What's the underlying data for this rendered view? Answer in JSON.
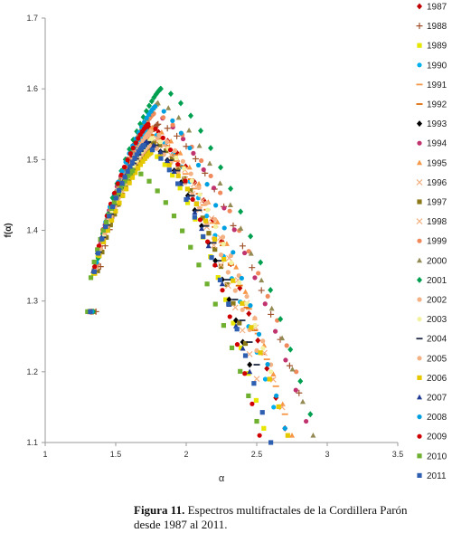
{
  "chart_data": {
    "type": "scatter",
    "title": "",
    "xlabel": "α",
    "ylabel": "f(α)",
    "xlim": [
      1,
      3.5
    ],
    "ylim": [
      1.1,
      1.7
    ],
    "xticks": [
      1,
      1.5,
      2,
      2.5,
      3,
      3.5
    ],
    "yticks": [
      1.1,
      1.2,
      1.3,
      1.4,
      1.5,
      1.6,
      1.7
    ],
    "xtick_labels": [
      "1",
      "1.5",
      "2",
      "2.5",
      "3",
      "3.5"
    ],
    "ytick_labels": [
      "1.1",
      "1.2",
      "1.3",
      "1.4",
      "1.5",
      "1.6",
      "1.7"
    ],
    "grid": false,
    "legend_position": "right",
    "series": [
      {
        "name": "1987",
        "color": "#c00000",
        "marker": "diamond",
        "a0": 1.33,
        "amax": 1.74,
        "fmax": 1.545,
        "a1": 2.7,
        "f1": 1.12
      },
      {
        "name": "1988",
        "color": "#a0522d",
        "marker": "plus",
        "a0": 1.36,
        "amax": 1.8,
        "fmax": 1.55,
        "a1": 2.8,
        "f1": 1.17
      },
      {
        "name": "1989",
        "color": "#e6e600",
        "marker": "square",
        "a0": 1.31,
        "amax": 1.74,
        "fmax": 1.51,
        "a1": 2.55,
        "f1": 1.12
      },
      {
        "name": "1990",
        "color": "#00b0f0",
        "marker": "dot",
        "a0": 1.32,
        "amax": 1.73,
        "fmax": 1.54,
        "a1": 2.62,
        "f1": 1.15
      },
      {
        "name": "1991",
        "color": "#f79646",
        "marker": "dash",
        "a0": 1.33,
        "amax": 1.74,
        "fmax": 1.53,
        "a1": 2.7,
        "f1": 1.14
      },
      {
        "name": "1992",
        "color": "#e36c0a",
        "marker": "dash",
        "a0": 1.32,
        "amax": 1.75,
        "fmax": 1.535,
        "a1": 2.6,
        "f1": 1.19
      },
      {
        "name": "1993",
        "color": "#000000",
        "marker": "diamond",
        "a0": 1.32,
        "amax": 1.72,
        "fmax": 1.525,
        "a1": 2.45,
        "f1": 1.21
      },
      {
        "name": "1994",
        "color": "#c0336f",
        "marker": "dot",
        "a0": 1.33,
        "amax": 1.76,
        "fmax": 1.565,
        "a1": 2.85,
        "f1": 1.13
      },
      {
        "name": "1995",
        "color": "#f79646",
        "marker": "triangle",
        "a0": 1.33,
        "amax": 1.76,
        "fmax": 1.545,
        "a1": 2.75,
        "f1": 1.11
      },
      {
        "name": "1996",
        "color": "#f4b183",
        "marker": "cross",
        "a0": 1.32,
        "amax": 1.74,
        "fmax": 1.535,
        "a1": 2.68,
        "f1": 1.15
      },
      {
        "name": "1997",
        "color": "#8c7a1a",
        "marker": "square",
        "a0": 1.34,
        "amax": 1.77,
        "fmax": 1.525,
        "a1": 2.42,
        "f1": 1.24
      },
      {
        "name": "1998",
        "color": "#f4b183",
        "marker": "cross",
        "a0": 1.32,
        "amax": 1.74,
        "fmax": 1.535,
        "a1": 2.5,
        "f1": 1.19
      },
      {
        "name": "1999",
        "color": "#f08a5d",
        "marker": "dot",
        "a0": 1.34,
        "amax": 1.77,
        "fmax": 1.565,
        "a1": 2.78,
        "f1": 1.2
      },
      {
        "name": "2000",
        "color": "#948a54",
        "marker": "triangle",
        "a0": 1.33,
        "amax": 1.8,
        "fmax": 1.58,
        "a1": 2.9,
        "f1": 1.11
      },
      {
        "name": "2001",
        "color": "#00a050",
        "marker": "diamond",
        "a0": 1.34,
        "amax": 1.82,
        "fmax": 1.6,
        "a1": 2.88,
        "f1": 1.14
      },
      {
        "name": "2002",
        "color": "#f4b183",
        "marker": "dot",
        "a0": 1.32,
        "amax": 1.74,
        "fmax": 1.52,
        "a1": 2.5,
        "f1": 1.23
      },
      {
        "name": "2003",
        "color": "#f2f2a0",
        "marker": "dot",
        "a0": 1.32,
        "amax": 1.76,
        "fmax": 1.53,
        "a1": 2.6,
        "f1": 1.2
      },
      {
        "name": "2004",
        "color": "#1f2a44",
        "marker": "dash",
        "a0": 1.32,
        "amax": 1.73,
        "fmax": 1.525,
        "a1": 2.5,
        "f1": 1.21
      },
      {
        "name": "2005",
        "color": "#f4b183",
        "marker": "dot",
        "a0": 1.33,
        "amax": 1.75,
        "fmax": 1.54,
        "a1": 2.6,
        "f1": 1.21
      },
      {
        "name": "2006",
        "color": "#e6c800",
        "marker": "square",
        "a0": 1.32,
        "amax": 1.75,
        "fmax": 1.51,
        "a1": 2.72,
        "f1": 1.11
      },
      {
        "name": "2007",
        "color": "#1f3a93",
        "marker": "triangle",
        "a0": 1.31,
        "amax": 1.72,
        "fmax": 1.525,
        "a1": 2.45,
        "f1": 1.2
      },
      {
        "name": "2008",
        "color": "#00a0e0",
        "marker": "dot",
        "a0": 1.33,
        "amax": 1.78,
        "fmax": 1.575,
        "a1": 2.7,
        "f1": 1.12
      },
      {
        "name": "2009",
        "color": "#d00000",
        "marker": "dot",
        "a0": 1.32,
        "amax": 1.73,
        "fmax": 1.55,
        "a1": 2.52,
        "f1": 1.11
      },
      {
        "name": "2010",
        "color": "#70b030",
        "marker": "square",
        "a0": 1.3,
        "amax": 1.62,
        "fmax": 1.485,
        "a1": 2.5,
        "f1": 1.13
      },
      {
        "name": "2011",
        "color": "#2e5fb0",
        "marker": "square",
        "a0": 1.32,
        "amax": 1.7,
        "fmax": 1.52,
        "a1": 2.6,
        "f1": 1.1
      }
    ]
  },
  "caption": {
    "label": "Figura 11.",
    "text": " Espectros multifractales de la Cordillera Parón desde 1987 al 2011."
  }
}
